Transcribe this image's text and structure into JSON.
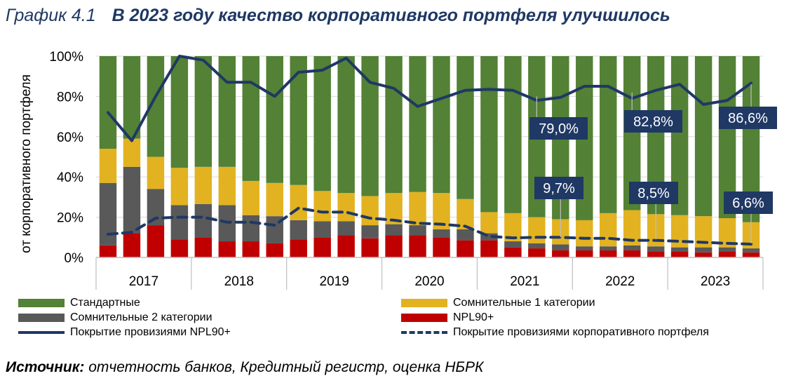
{
  "header": {
    "prefix": "График 4.1",
    "title": "В 2023 году качество корпоративного портфеля улучшилось"
  },
  "source": {
    "label": "Источник:",
    "text": " отчетность банков, Кредитный регистр, оценка НБРК"
  },
  "colors": {
    "standard": "#538135",
    "doubtful1": "#e2b221",
    "doubtful2": "#595959",
    "npl": "#c00000",
    "line": "#1f3864",
    "grid": "#d9d9d9"
  },
  "chart_data": {
    "type": "bar",
    "stacked": true,
    "ylabel": "от корпоративного портфеля",
    "ylim": [
      0,
      100
    ],
    "yticks": [
      "0%",
      "20%",
      "40%",
      "60%",
      "80%",
      "100%"
    ],
    "year_labels": [
      "2017",
      "2018",
      "2019",
      "2020",
      "2021",
      "2022",
      "2023"
    ],
    "bars_per_year": 4,
    "series": [
      {
        "name": "NPL90+",
        "key": "npl",
        "values": [
          6,
          12,
          16,
          9,
          10,
          8,
          8,
          7,
          9,
          10,
          11,
          9.5,
          11,
          11,
          10,
          8.5,
          8.5,
          5,
          4.5,
          3.5,
          3.5,
          3.5,
          3.5,
          3,
          3,
          2.5,
          3,
          2.5
        ]
      },
      {
        "name": "Сомнительные 2 категории",
        "key": "doubtful2",
        "values": [
          31,
          33,
          18,
          17,
          16.5,
          18,
          13,
          13.5,
          9.5,
          8,
          7,
          6.5,
          5.5,
          5,
          4,
          5.5,
          3.5,
          3,
          2.5,
          3,
          2,
          2,
          2.5,
          2.5,
          2,
          2.5,
          2,
          2
        ]
      },
      {
        "name": "Сомнительные 1 категории",
        "key": "doubtful1",
        "values": [
          17,
          14,
          16,
          18.5,
          18.5,
          19,
          17,
          16.5,
          17.5,
          15,
          14,
          14.5,
          15.5,
          16.5,
          18,
          15,
          10.5,
          14,
          13,
          12.5,
          13,
          16.5,
          17.5,
          16,
          16,
          15.5,
          14.5,
          13
        ]
      },
      {
        "name": "Стандартные",
        "key": "standard",
        "values": [
          46,
          41,
          50,
          55.5,
          55,
          55,
          62,
          63,
          64,
          67,
          68,
          69.5,
          68,
          67.5,
          68,
          71,
          77.5,
          78,
          80,
          81,
          81.5,
          78,
          76.5,
          78.5,
          79,
          79.5,
          80.5,
          82.5
        ]
      }
    ],
    "lines": [
      {
        "name": "Покрытие провизиями NPL90+",
        "style": "solid",
        "values": [
          72,
          58,
          80,
          100,
          98,
          87,
          87,
          80,
          92,
          93,
          99,
          87,
          84,
          75,
          79,
          83,
          83.5,
          83,
          78,
          79.5,
          85,
          85,
          79,
          83,
          86,
          76,
          78,
          86.6
        ]
      },
      {
        "name": "Покрытие провизиями корпоративного портфеля",
        "style": "dashed",
        "values": [
          11.5,
          12.5,
          19.5,
          20,
          20,
          17.5,
          17.5,
          16,
          24.5,
          22.5,
          22.5,
          19.5,
          18.5,
          17,
          16.5,
          15.5,
          10.5,
          9.7,
          10,
          10,
          9.5,
          9.5,
          8.5,
          8.5,
          8,
          7.5,
          7,
          6.6
        ]
      }
    ],
    "annotations": {
      "npl_coverage": [
        "79,0%",
        "82,8%",
        "86,6%"
      ],
      "portfolio_coverage": [
        "9,7%",
        "8,5%",
        "6,6%"
      ]
    }
  },
  "legend": {
    "standard": "Стандартные",
    "doubtful1": "Сомнительные 1 категории",
    "doubtful2": "Сомнительные 2 категории",
    "npl": "NPL90+",
    "npl_coverage": "Покрытие провизиями NPL90+",
    "portfolio_coverage": "Покрытие провизиями корпоративного портфеля"
  }
}
